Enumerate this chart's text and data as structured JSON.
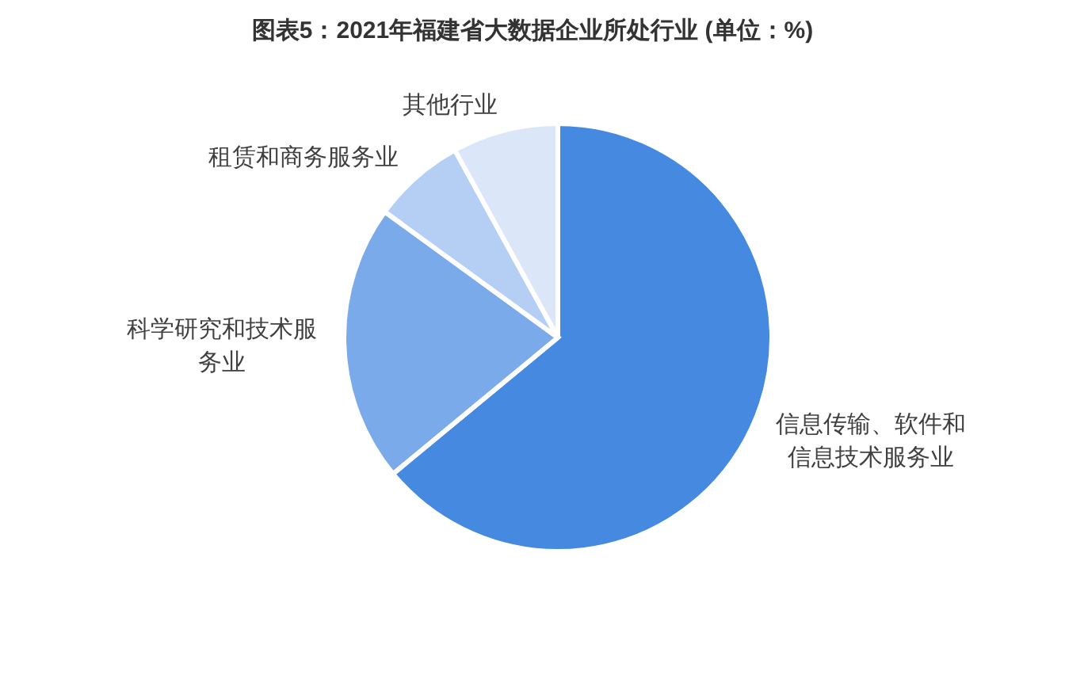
{
  "chart_data": {
    "type": "pie",
    "title": "图表5：2021年福建省大数据企业所处行业 (单位：%)",
    "categories": [
      "信息传输、软件和信息技术服务业",
      "科学研究和技术服务业",
      "租赁和商务服务业",
      "其他行业"
    ],
    "values": [
      64,
      21,
      7,
      8
    ],
    "colors": [
      "#4589e0",
      "#7aaae9",
      "#b4cff3",
      "#dbe7f8"
    ]
  }
}
